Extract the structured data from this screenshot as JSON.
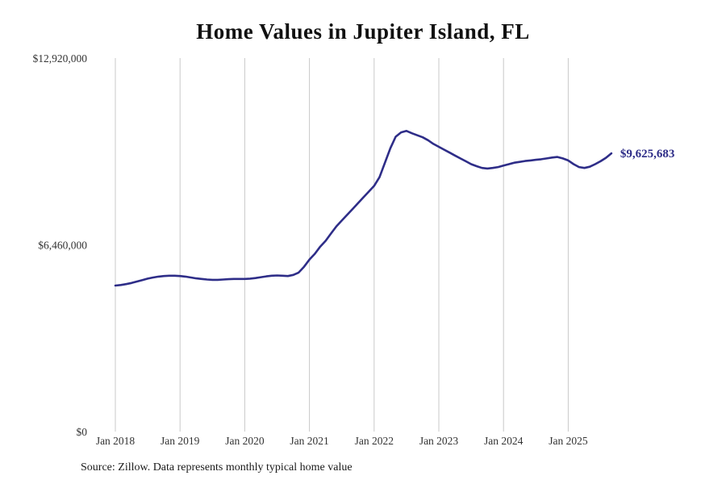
{
  "title": "Home Values in Jupiter Island, FL",
  "source_note": "Source: Zillow. Data represents monthly typical home value",
  "chart_data": {
    "type": "line",
    "title": "Home Values in Jupiter Island, FL",
    "series_name": "Monthly typical home value",
    "line_color": "#2e2d88",
    "grid_color": "#c9c9c9",
    "grid": "vertical-only",
    "legend": "none",
    "ylim": [
      0,
      12920000
    ],
    "y_ticks": [
      {
        "value": 0,
        "label": "$0"
      },
      {
        "value": 6460000,
        "label": "$6,460,000"
      },
      {
        "value": 12920000,
        "label": "$12,920,000"
      }
    ],
    "x_ticks": [
      "Jan 2018",
      "Jan 2019",
      "Jan 2020",
      "Jan 2021",
      "Jan 2022",
      "Jan 2023",
      "Jan 2024",
      "Jan 2025"
    ],
    "end_label": "$9,625,683",
    "end_value": 9625683,
    "x": [
      "2018-01",
      "2018-02",
      "2018-03",
      "2018-04",
      "2018-05",
      "2018-06",
      "2018-07",
      "2018-08",
      "2018-09",
      "2018-10",
      "2018-11",
      "2018-12",
      "2019-01",
      "2019-02",
      "2019-03",
      "2019-04",
      "2019-05",
      "2019-06",
      "2019-07",
      "2019-08",
      "2019-09",
      "2019-10",
      "2019-11",
      "2019-12",
      "2020-01",
      "2020-02",
      "2020-03",
      "2020-04",
      "2020-05",
      "2020-06",
      "2020-07",
      "2020-08",
      "2020-09",
      "2020-10",
      "2020-11",
      "2020-12",
      "2021-01",
      "2021-02",
      "2021-03",
      "2021-04",
      "2021-05",
      "2021-06",
      "2021-07",
      "2021-08",
      "2021-09",
      "2021-10",
      "2021-11",
      "2021-12",
      "2022-01",
      "2022-02",
      "2022-03",
      "2022-04",
      "2022-05",
      "2022-06",
      "2022-07",
      "2022-08",
      "2022-09",
      "2022-10",
      "2022-11",
      "2022-12",
      "2023-01",
      "2023-02",
      "2023-03",
      "2023-04",
      "2023-05",
      "2023-06",
      "2023-07",
      "2023-08",
      "2023-09",
      "2023-10",
      "2023-11",
      "2023-12",
      "2024-01",
      "2024-02",
      "2024-03",
      "2024-04",
      "2024-05",
      "2024-06",
      "2024-07",
      "2024-08",
      "2024-09",
      "2024-10",
      "2024-11",
      "2024-12",
      "2025-01",
      "2025-02",
      "2025-03",
      "2025-04",
      "2025-05",
      "2025-06",
      "2025-07",
      "2025-08",
      "2025-09"
    ],
    "values": [
      5050000,
      5070000,
      5100000,
      5140000,
      5190000,
      5240000,
      5290000,
      5330000,
      5360000,
      5380000,
      5390000,
      5390000,
      5380000,
      5360000,
      5330000,
      5300000,
      5280000,
      5260000,
      5250000,
      5250000,
      5260000,
      5270000,
      5280000,
      5280000,
      5280000,
      5290000,
      5310000,
      5340000,
      5370000,
      5390000,
      5400000,
      5390000,
      5380000,
      5420000,
      5500000,
      5700000,
      5950000,
      6150000,
      6400000,
      6600000,
      6850000,
      7100000,
      7300000,
      7500000,
      7700000,
      7900000,
      8100000,
      8300000,
      8500000,
      8800000,
      9300000,
      9800000,
      10200000,
      10350000,
      10400000,
      10320000,
      10250000,
      10180000,
      10080000,
      9950000,
      9850000,
      9750000,
      9650000,
      9550000,
      9450000,
      9350000,
      9250000,
      9180000,
      9120000,
      9100000,
      9120000,
      9150000,
      9200000,
      9250000,
      9300000,
      9330000,
      9360000,
      9380000,
      9400000,
      9420000,
      9450000,
      9480000,
      9500000,
      9450000,
      9380000,
      9250000,
      9150000,
      9120000,
      9160000,
      9250000,
      9350000,
      9470000,
      9625683
    ]
  }
}
